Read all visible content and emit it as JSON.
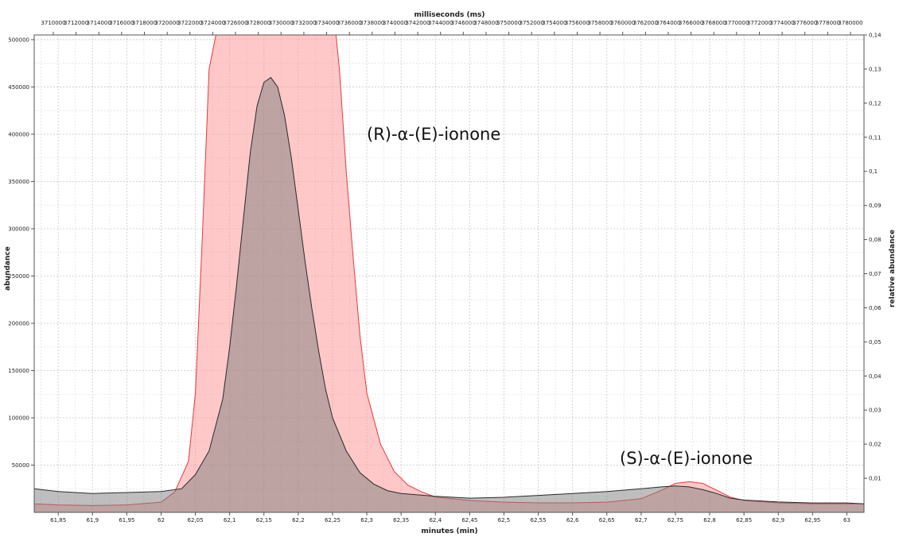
{
  "chart_data": {
    "type": "area",
    "title": "",
    "xlabel": "minutes (min)",
    "x2label": "milliseconds (ms)",
    "ylabel": "abundance",
    "y2label": "relative abundance",
    "xlim": [
      61.815,
      63.025
    ],
    "ylim": [
      0,
      505000
    ],
    "y2lim": [
      0,
      0.14
    ],
    "grid": true,
    "legend": "none",
    "x_ticks": [
      "61,85",
      "61,9",
      "61,95",
      "62",
      "62,05",
      "62,1",
      "62,15",
      "62,2",
      "62,25",
      "62,3",
      "62,35",
      "62,4",
      "62,45",
      "62,5",
      "62,55",
      "62,6",
      "62,65",
      "62,7",
      "62,75",
      "62,8",
      "62,85",
      "62,9",
      "62,95",
      "63"
    ],
    "x_tick_values": [
      61.85,
      61.9,
      61.95,
      62.0,
      62.05,
      62.1,
      62.15,
      62.2,
      62.25,
      62.3,
      62.35,
      62.4,
      62.45,
      62.5,
      62.55,
      62.6,
      62.65,
      62.7,
      62.75,
      62.8,
      62.85,
      62.9,
      62.95,
      63.0
    ],
    "x2_ticks": [
      "3710000",
      "3712000",
      "3714000",
      "3716000",
      "3718000",
      "3720000",
      "3722000",
      "3724000",
      "3726000",
      "3728000",
      "3730000",
      "3732000",
      "3734000",
      "3736000",
      "3738000",
      "3740000",
      "3742000",
      "3744000",
      "3746000",
      "3748000",
      "3750000",
      "3752000",
      "3754000",
      "3756000",
      "3758000",
      "3760000",
      "3762000",
      "3764000",
      "3766000",
      "3768000",
      "3770000",
      "3772000",
      "3774000",
      "3776000",
      "3778000",
      "3780000"
    ],
    "x2_tick_values": [
      3710000,
      3712000,
      3714000,
      3716000,
      3718000,
      3720000,
      3722000,
      3724000,
      3726000,
      3728000,
      3730000,
      3732000,
      3734000,
      3736000,
      3738000,
      3740000,
      3742000,
      3744000,
      3746000,
      3748000,
      3750000,
      3752000,
      3754000,
      3756000,
      3758000,
      3760000,
      3762000,
      3764000,
      3766000,
      3768000,
      3770000,
      3772000,
      3774000,
      3776000,
      3778000,
      3780000
    ],
    "y_ticks": [
      "50000",
      "100000",
      "150000",
      "200000",
      "250000",
      "300000",
      "350000",
      "400000",
      "450000",
      "500000"
    ],
    "y_tick_values": [
      50000,
      100000,
      150000,
      200000,
      250000,
      300000,
      350000,
      400000,
      450000,
      500000
    ],
    "y2_ticks": [
      "0,01",
      "0,02",
      "0,03",
      "0,04",
      "0,05",
      "0,06",
      "0,07",
      "0,08",
      "0,09",
      "0,1",
      "0,11",
      "0,12",
      "0,13",
      "0,14"
    ],
    "y2_tick_values": [
      0.01,
      0.02,
      0.03,
      0.04,
      0.05,
      0.06,
      0.07,
      0.08,
      0.09,
      0.1,
      0.11,
      0.12,
      0.13,
      0.14
    ],
    "annotations": [
      {
        "text": "(R)-α-(E)-ionone",
        "x": 62.27,
        "y": 400000
      },
      {
        "text": "(S)-α-(E)-ionone",
        "x": 62.72,
        "y": 50000
      }
    ],
    "series": [
      {
        "color": "#ff9b9b",
        "stroke": "#e8383d",
        "axis": "right",
        "x": [
          61.815,
          61.85,
          61.9,
          61.95,
          62.0,
          62.02,
          62.04,
          62.05,
          62.06,
          62.07,
          62.08,
          62.1,
          62.15,
          62.2,
          62.25,
          62.255,
          62.26,
          62.27,
          62.28,
          62.29,
          62.3,
          62.32,
          62.34,
          62.36,
          62.38,
          62.4,
          62.45,
          62.5,
          62.55,
          62.6,
          62.65,
          62.7,
          62.73,
          62.75,
          62.77,
          62.79,
          62.81,
          62.83,
          62.85,
          62.9,
          62.95,
          63.0,
          63.025
        ],
        "values": [
          0.0025,
          0.0022,
          0.002,
          0.0022,
          0.003,
          0.006,
          0.015,
          0.035,
          0.08,
          0.13,
          0.14,
          0.14,
          0.14,
          0.14,
          0.14,
          0.14,
          0.13,
          0.1,
          0.075,
          0.052,
          0.035,
          0.02,
          0.012,
          0.008,
          0.006,
          0.0045,
          0.0035,
          0.003,
          0.0028,
          0.0028,
          0.003,
          0.004,
          0.0065,
          0.0085,
          0.009,
          0.0085,
          0.0065,
          0.0045,
          0.0035,
          0.0028,
          0.0025,
          0.0025,
          0.0025
        ]
      },
      {
        "color": "#7e7e7e",
        "stroke": "#2a2a2a",
        "axis": "left",
        "x": [
          61.815,
          61.85,
          61.9,
          61.95,
          62.0,
          62.03,
          62.05,
          62.07,
          62.09,
          62.1,
          62.11,
          62.12,
          62.13,
          62.14,
          62.15,
          62.16,
          62.17,
          62.18,
          62.19,
          62.2,
          62.21,
          62.22,
          62.23,
          62.24,
          62.25,
          62.27,
          62.29,
          62.31,
          62.33,
          62.35,
          62.4,
          62.45,
          62.5,
          62.55,
          62.6,
          62.65,
          62.7,
          62.73,
          62.75,
          62.77,
          62.79,
          62.81,
          62.83,
          62.85,
          62.9,
          62.95,
          63.0,
          63.025
        ],
        "values": [
          25000,
          22000,
          20000,
          21000,
          22000,
          25000,
          40000,
          65000,
          120000,
          175000,
          240000,
          310000,
          380000,
          430000,
          455000,
          460000,
          450000,
          420000,
          375000,
          320000,
          265000,
          215000,
          170000,
          130000,
          100000,
          65000,
          42000,
          30000,
          23000,
          20000,
          17000,
          15000,
          16000,
          18000,
          20000,
          22000,
          25000,
          27000,
          28000,
          27000,
          24000,
          20000,
          15000,
          13000,
          11000,
          10000,
          10000,
          9000
        ]
      }
    ]
  }
}
